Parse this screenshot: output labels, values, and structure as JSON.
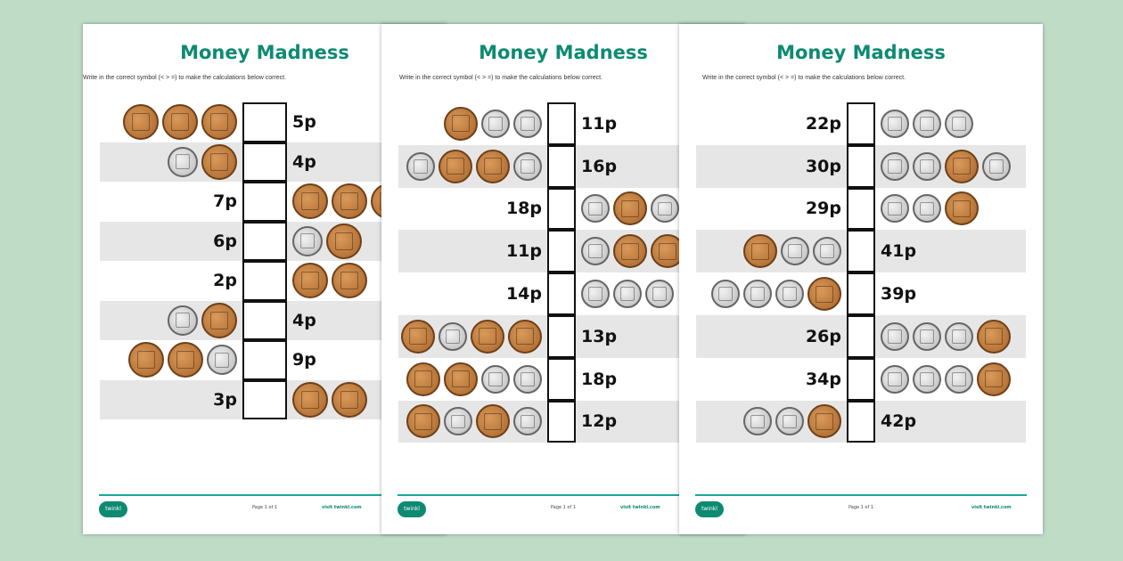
{
  "title": "Money Madness",
  "instruction": "Write in the correct symbol (< > =) to make the calculations below correct.",
  "footer": {
    "logo": "twinkl",
    "page": "Page 1 of 1",
    "visit": "visit twinkl.com"
  },
  "colors": {
    "title": "#0e8a72",
    "background": "#bfdcc6",
    "footer_line": "#1aa898"
  },
  "pages": [
    {
      "rows": [
        {
          "left": [
            "copper",
            "copper",
            "copper"
          ],
          "right": "5p"
        },
        {
          "left": [
            "silver",
            "copper"
          ],
          "right": "4p"
        },
        {
          "left": "7p",
          "right": [
            "copper",
            "copper",
            "copper"
          ]
        },
        {
          "left": "6p",
          "right": [
            "silver",
            "copper"
          ]
        },
        {
          "left": "2p",
          "right": [
            "copper",
            "copper"
          ]
        },
        {
          "left": [
            "silver",
            "copper"
          ],
          "right": "4p"
        },
        {
          "left": [
            "copper",
            "copper",
            "silver"
          ],
          "right": "9p"
        },
        {
          "left": "3p",
          "right": [
            "copper",
            "copper"
          ]
        }
      ]
    },
    {
      "rows": [
        {
          "left": [
            "copper",
            "silver",
            "silver"
          ],
          "right": "11p"
        },
        {
          "left": [
            "silver",
            "copper",
            "copper",
            "silver"
          ],
          "right": "16p"
        },
        {
          "left": "18p",
          "right": [
            "silver",
            "copper",
            "silver"
          ]
        },
        {
          "left": "11p",
          "right": [
            "silver",
            "copper",
            "copper"
          ]
        },
        {
          "left": "14p",
          "right": [
            "silver",
            "silver",
            "silver"
          ]
        },
        {
          "left": [
            "copper",
            "silver",
            "copper",
            "copper"
          ],
          "right": "13p"
        },
        {
          "left": [
            "copper",
            "copper",
            "silver",
            "silver"
          ],
          "right": "18p"
        },
        {
          "left": [
            "copper",
            "silver",
            "copper",
            "silver"
          ],
          "right": "12p"
        }
      ]
    },
    {
      "rows": [
        {
          "left": "22p",
          "right": [
            "silver",
            "silver",
            "silver"
          ]
        },
        {
          "left": "30p",
          "right": [
            "silver",
            "silver",
            "copper",
            "silver"
          ]
        },
        {
          "left": "29p",
          "right": [
            "silver",
            "silver",
            "copper"
          ]
        },
        {
          "left": [
            "copper",
            "silver",
            "silver"
          ],
          "right": "41p"
        },
        {
          "left": [
            "silver",
            "silver",
            "silver",
            "copper"
          ],
          "right": "39p"
        },
        {
          "left": "26p",
          "right": [
            "silver",
            "silver",
            "silver",
            "copper"
          ]
        },
        {
          "left": "34p",
          "right": [
            "silver",
            "silver",
            "silver",
            "copper"
          ]
        },
        {
          "left": [
            "silver",
            "silver",
            "copper"
          ],
          "right": "42p"
        }
      ]
    }
  ]
}
